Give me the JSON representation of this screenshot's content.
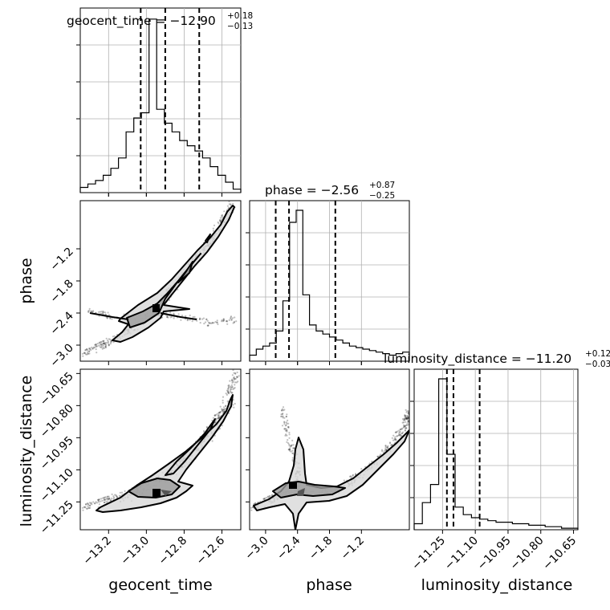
{
  "chart_data": {
    "type": "corner",
    "parameters": [
      "geocent_time",
      "phase",
      "luminosity_distance"
    ],
    "titles": [
      {
        "param": "geocent_time",
        "prefix": "geocent_time = ",
        "median": "−12.90",
        "plus": "+0.18",
        "minus": "−0.13"
      },
      {
        "param": "phase",
        "prefix": "phase = ",
        "median": "−2.56",
        "plus": "+0.87",
        "minus": "−0.25"
      },
      {
        "param": "luminosity_distance",
        "prefix": "luminosity_distance = ",
        "median": "−11.20",
        "plus": "+0.12",
        "minus": "−0.03"
      }
    ],
    "axes": {
      "geocent_time": {
        "range": [
          -13.35,
          -12.5
        ],
        "ticks": [
          -13.2,
          -13.0,
          -12.8,
          -12.6
        ],
        "tick_labels": [
          "−13.2",
          "−13.0",
          "−12.8",
          "−12.6"
        ],
        "quantiles": [
          -13.03,
          -12.9,
          -12.72
        ]
      },
      "phase": {
        "range": [
          -3.3,
          -0.3
        ],
        "ticks": [
          -3.0,
          -2.4,
          -1.8,
          -1.2
        ],
        "tick_labels": [
          "−3.0",
          "−2.4",
          "−1.8",
          "−1.2"
        ],
        "quantiles": [
          -2.81,
          -2.56,
          -1.69
        ]
      },
      "luminosity_distance": {
        "range": [
          -11.38,
          -10.63
        ],
        "ticks": [
          -11.25,
          -11.1,
          -10.95,
          -10.8,
          -10.65
        ],
        "tick_labels": [
          "−11.25",
          "−11.10",
          "−10.95",
          "−10.80",
          "−10.65"
        ],
        "quantiles": [
          -11.23,
          -11.2,
          -11.08
        ]
      }
    },
    "histograms": {
      "geocent_time": [
        0.03,
        0.05,
        0.07,
        0.1,
        0.14,
        0.2,
        0.35,
        0.43,
        0.46,
        1.0,
        0.48,
        0.4,
        0.35,
        0.3,
        0.27,
        0.24,
        0.2,
        0.15,
        0.1,
        0.06,
        0.02
      ],
      "phase": [
        0.04,
        0.08,
        0.1,
        0.12,
        0.2,
        0.4,
        0.92,
        1.0,
        0.44,
        0.24,
        0.2,
        0.18,
        0.16,
        0.14,
        0.12,
        0.1,
        0.09,
        0.08,
        0.07,
        0.06,
        0.05,
        0.04,
        0.05,
        0.06
      ],
      "luminosity_distance": [
        0.04,
        0.18,
        0.3,
        1.0,
        0.5,
        0.15,
        0.1,
        0.08,
        0.07,
        0.06,
        0.05,
        0.05,
        0.04,
        0.04,
        0.03,
        0.03,
        0.02,
        0.02,
        0.01,
        0.01
      ]
    },
    "grid": true
  }
}
